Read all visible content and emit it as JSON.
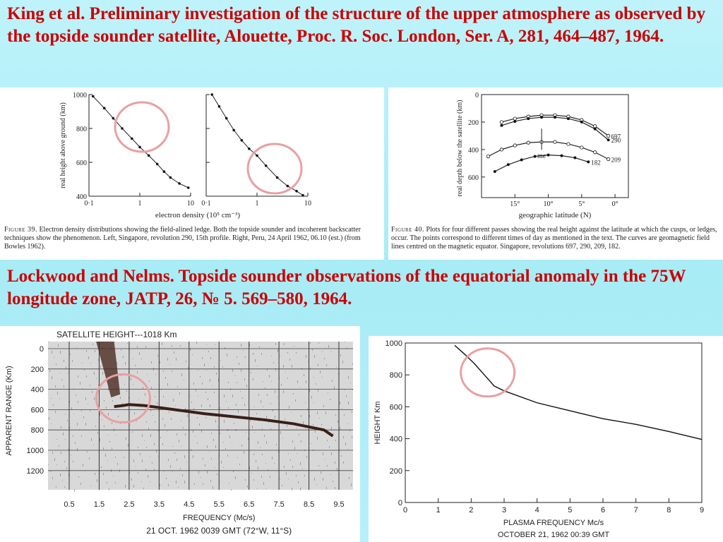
{
  "headlines": {
    "king": "King et al. Preliminary investigation of the structure of the upper atmosphere as observed by the topside sounder satellite, Alouette, Proc. R. Soc. London, Ser. A, 281, 464–487, 1964.",
    "lockwood": "Lockwood and Nelms. Topside sounder observations of the equatorial anomaly in the 75W longitude zone, JATP, 26, № 5. 569–580, 1964."
  },
  "figure39": {
    "caption_label": "Figure 39.",
    "caption_text": "Electron density distributions showing the field-alined ledge. Both the topside sounder and incoherent backscatter techniques show the phenomenon. Left, Singapore, revolution 290, 15th profile. Right, Peru, 24 April 1962, 06.10 (est.) (from Bowles 1962)."
  },
  "figure40": {
    "caption_label": "Figure 40.",
    "caption_text": "Plots for four different passes showing the real height against the latitude at which the cusps, or ledges, occur. The points correspond to different times of day as mentioned in the text. The curves are geomagnetic field lines centred on the magnetic equator. Singapore, revolutions 697, 290, 209, 182."
  },
  "ionogram": {
    "title": "SATELLITE HEIGHT---1018 Km",
    "footer": "21 OCT. 1962 0039 GMT (72°W, 11°S)"
  },
  "colors": {
    "headline": "#cc0000",
    "highlight_circle": "#e8a0a0",
    "background": "#b0eef8"
  },
  "chart_data": [
    {
      "type": "scatter",
      "title": "",
      "xlabel": "electron density (10⁵ cm⁻³)",
      "ylabel": "real height above ground (km)",
      "x_scale": "log",
      "x_ticks": [
        "0·1",
        "1",
        "10"
      ],
      "y_ticks": [
        "1000",
        "800",
        "600",
        "400"
      ],
      "ylim": [
        400,
        1000
      ],
      "panels": [
        {
          "name": "",
          "x": [
            0.12,
            0.2,
            0.3,
            0.45,
            0.7,
            1.0,
            1.5,
            2.2,
            3.0,
            4.0,
            6.0,
            9.0
          ],
          "y": [
            990,
            920,
            860,
            800,
            740,
            690,
            640,
            590,
            545,
            510,
            475,
            450
          ]
        },
        {
          "name": "",
          "x": [
            0.13,
            0.18,
            0.25,
            0.35,
            0.5,
            0.7,
            1.0,
            1.5,
            2.5,
            4.0,
            6.0,
            8.0
          ],
          "y": [
            1000,
            930,
            860,
            790,
            730,
            680,
            640,
            580,
            510,
            460,
            430,
            405
          ]
        }
      ]
    },
    {
      "type": "scatter",
      "title": "",
      "xlabel": "geographic latitude (N)",
      "ylabel": "real depth below the satellite (km)",
      "x_ticks": [
        "15°",
        "10°",
        "5°",
        "0°"
      ],
      "y_ticks": [
        "0",
        "200",
        "400",
        "600"
      ],
      "ylim": [
        0,
        750
      ],
      "annotation": "me",
      "series": [
        {
          "name": "697",
          "x": [
            17,
            15,
            13,
            11,
            9,
            7,
            5,
            3,
            1
          ],
          "y": [
            200,
            175,
            160,
            150,
            150,
            160,
            185,
            230,
            300
          ]
        },
        {
          "name": "290",
          "x": [
            17,
            15,
            13,
            11,
            9,
            7,
            5,
            3,
            1
          ],
          "y": [
            225,
            195,
            175,
            165,
            165,
            175,
            200,
            250,
            330
          ]
        },
        {
          "name": "209",
          "x": [
            19,
            17,
            15,
            13,
            11,
            9,
            7,
            5,
            3,
            1
          ],
          "y": [
            450,
            400,
            370,
            350,
            345,
            345,
            360,
            385,
            420,
            470
          ]
        },
        {
          "name": "182",
          "x": [
            18,
            16,
            14,
            12,
            10,
            8,
            6,
            4
          ],
          "y": [
            560,
            510,
            475,
            450,
            440,
            445,
            460,
            490
          ]
        }
      ]
    },
    {
      "type": "heatmap",
      "title": "SATELLITE HEIGHT---1018 Km",
      "xlabel": "FREQUENCY (Mc/s)",
      "ylabel": "APPARENT RANGE (Km)",
      "x_ticks": [
        "0.5",
        "1.5",
        "2.5",
        "3.5",
        "4.5",
        "5.5",
        "6.5",
        "7.5",
        "8.5",
        "9.5"
      ],
      "y_ticks": [
        "0",
        "200",
        "400",
        "600",
        "800",
        "1000",
        "1200"
      ],
      "trace": {
        "name": "",
        "x": [
          2.0,
          2.3,
          2.5,
          3.0,
          4.0,
          5.0,
          6.0,
          7.0,
          8.0,
          9.0,
          9.3
        ],
        "y": [
          570,
          560,
          550,
          560,
          600,
          640,
          670,
          700,
          740,
          800,
          860
        ]
      }
    },
    {
      "type": "line",
      "title": "",
      "xlabel": "PLASMA FREQUENCY Mc/s",
      "ylabel": "HEIGHT Km",
      "subtitle": "OCTOBER 21, 1962 00:39 GMT",
      "x_ticks": [
        "0",
        "1",
        "2",
        "3",
        "4",
        "5",
        "6",
        "7",
        "8",
        "9"
      ],
      "y_ticks": [
        "1000",
        "800",
        "600",
        "400",
        "200",
        "0"
      ],
      "xlim": [
        0,
        9
      ],
      "ylim": [
        0,
        1000
      ],
      "series": [
        {
          "name": "",
          "x": [
            1.5,
            1.8,
            2.1,
            2.4,
            2.7,
            3.0,
            4.0,
            5.0,
            6.0,
            7.0,
            8.0,
            9.0
          ],
          "y": [
            985,
            930,
            870,
            800,
            730,
            700,
            625,
            575,
            525,
            490,
            445,
            395
          ]
        }
      ]
    }
  ]
}
